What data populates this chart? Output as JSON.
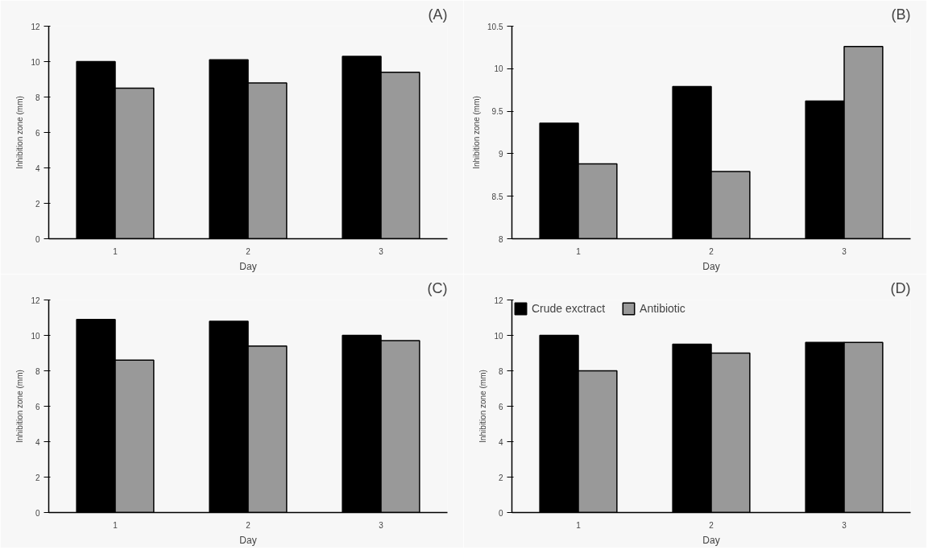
{
  "chart_data": [
    {
      "type": "bar",
      "title": "(A)",
      "xlabel": "Day",
      "ylabel": "Inhibition zone (mm)",
      "categories": [
        "1",
        "2",
        "3"
      ],
      "ylim": [
        0,
        12
      ],
      "yticks": [
        0,
        2,
        4,
        6,
        8,
        10,
        12
      ],
      "grid": false,
      "series": [
        {
          "color": "#000000",
          "values": [
            10.0,
            10.1,
            10.3
          ]
        },
        {
          "color": "#999999",
          "values": [
            8.5,
            8.8,
            9.4
          ]
        }
      ]
    },
    {
      "type": "bar",
      "title": "(B)",
      "xlabel": "Day",
      "ylabel": "Inhibition zone (mm)",
      "categories": [
        "1",
        "2",
        "3"
      ],
      "ylim": [
        8,
        10.5
      ],
      "yticks": [
        8,
        8.5,
        9,
        9.5,
        10,
        10.5
      ],
      "grid": false,
      "series": [
        {
          "color": "#000000",
          "values": [
            9.36,
            9.79,
            9.62
          ]
        },
        {
          "color": "#999999",
          "values": [
            8.88,
            8.79,
            10.26
          ]
        }
      ]
    },
    {
      "type": "bar",
      "title": "(C)",
      "xlabel": "Day",
      "ylabel": "Inhibition zone (mm)",
      "categories": [
        "1",
        "2",
        "3"
      ],
      "ylim": [
        0,
        12
      ],
      "yticks": [
        0,
        2,
        4,
        6,
        8,
        10,
        12
      ],
      "grid": false,
      "series": [
        {
          "color": "#000000",
          "values": [
            10.9,
            10.8,
            10.0
          ]
        },
        {
          "color": "#999999",
          "values": [
            8.6,
            9.4,
            9.7
          ]
        }
      ]
    },
    {
      "type": "bar",
      "title": "(D)",
      "xlabel": "Day",
      "ylabel": "Inhibition zone (mm)",
      "categories": [
        "1",
        "2",
        "3"
      ],
      "ylim": [
        0,
        12
      ],
      "yticks": [
        0,
        2,
        4,
        6,
        8,
        10,
        12
      ],
      "grid": false,
      "legend": "top left",
      "series": [
        {
          "name": "Crude exctract",
          "color": "#000000",
          "values": [
            10.0,
            9.5,
            9.6
          ]
        },
        {
          "name": "Antibiotic",
          "color": "#999999",
          "values": [
            8.0,
            9.0,
            9.6
          ]
        }
      ]
    }
  ]
}
